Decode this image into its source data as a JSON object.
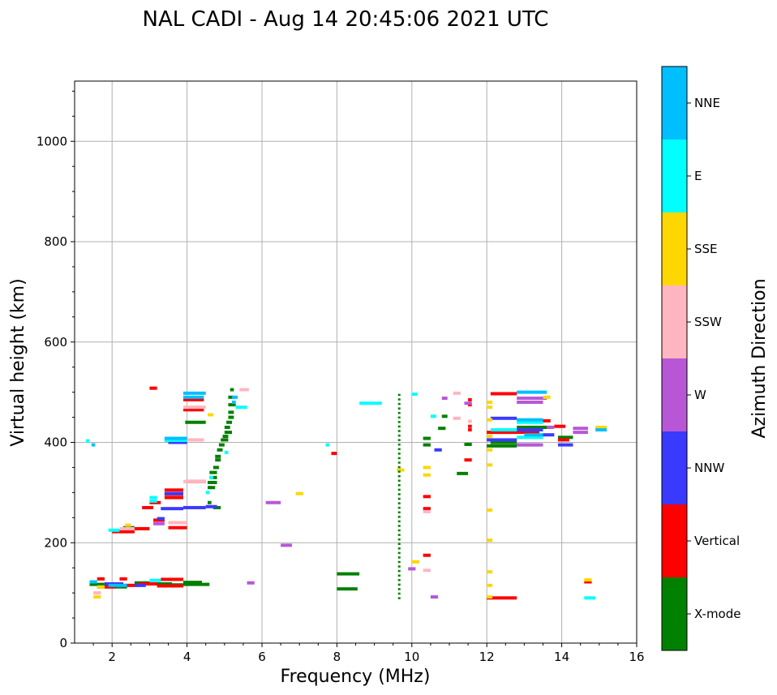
{
  "chart_data": {
    "type": "scatter",
    "title": "NAL CADI - Aug 14 20:45:06 2021 UTC",
    "xlabel": "Frequency (MHz)",
    "ylabel": "Virtual height (km)",
    "xlim": [
      1,
      16
    ],
    "ylim": [
      0,
      1120
    ],
    "xticks": [
      2,
      4,
      6,
      8,
      10,
      12,
      14,
      16
    ],
    "yticks": [
      0,
      200,
      400,
      600,
      800,
      1000
    ],
    "grid": true,
    "colorbar": {
      "label": "Azimuth Direction",
      "categories": [
        "X-mode",
        "Vertical",
        "NNW",
        "W",
        "SSW",
        "SSE",
        "E",
        "NNE"
      ],
      "colors": {
        "X-mode": "#008000",
        "Vertical": "#ff0000",
        "NNW": "#3a3aff",
        "W": "#b857d6",
        "SSW": "#ffb6c1",
        "SSE": "#ffd700",
        "E": "#00ffff",
        "NNE": "#00bfff"
      }
    },
    "series": [
      {
        "name": "X-mode",
        "segments": [
          [
            1.4,
            1.8,
            117
          ],
          [
            1.6,
            2.4,
            112
          ],
          [
            2.6,
            3.0,
            120
          ],
          [
            3.0,
            3.6,
            118
          ],
          [
            3.4,
            3.9,
            116
          ],
          [
            3.9,
            4.55,
            117
          ],
          [
            3.9,
            4.4,
            121
          ],
          [
            4.5,
            4.6,
            117
          ],
          [
            2.3,
            2.6,
            230
          ],
          [
            4.55,
            4.8,
            320
          ],
          [
            4.6,
            4.8,
            330
          ],
          [
            4.6,
            4.8,
            340
          ],
          [
            4.6,
            4.75,
            310
          ],
          [
            4.7,
            4.85,
            350
          ],
          [
            4.75,
            4.9,
            365
          ],
          [
            4.75,
            4.9,
            372
          ],
          [
            4.8,
            4.95,
            385
          ],
          [
            4.85,
            5.0,
            395
          ],
          [
            4.9,
            5.1,
            405
          ],
          [
            4.95,
            5.1,
            412
          ],
          [
            5.0,
            5.2,
            420
          ],
          [
            5.0,
            5.15,
            430
          ],
          [
            5.05,
            5.2,
            440
          ],
          [
            5.1,
            5.25,
            450
          ],
          [
            5.1,
            5.25,
            460
          ],
          [
            5.1,
            5.3,
            475
          ],
          [
            5.1,
            5.25,
            490
          ],
          [
            5.15,
            5.25,
            505
          ],
          [
            4.7,
            4.9,
            270
          ],
          [
            4.55,
            4.65,
            280
          ],
          [
            3.95,
            4.5,
            440
          ],
          [
            4.55,
            4.65,
            310
          ],
          [
            8.0,
            8.6,
            138
          ],
          [
            8.0,
            8.55,
            108
          ],
          [
            10.3,
            10.5,
            395
          ],
          [
            10.3,
            10.5,
            408
          ],
          [
            10.7,
            10.9,
            428
          ],
          [
            10.8,
            10.95,
            452
          ],
          [
            11.2,
            11.5,
            338
          ],
          [
            11.4,
            11.6,
            396
          ],
          [
            12.0,
            12.8,
            393
          ],
          [
            12.1,
            12.8,
            400
          ],
          [
            12.8,
            13.6,
            430
          ],
          [
            13.5,
            13.7,
            430
          ],
          [
            13.9,
            14.3,
            410
          ]
        ]
      },
      {
        "name": "Vertical",
        "segments": [
          [
            1.6,
            1.8,
            128
          ],
          [
            1.8,
            2.1,
            112
          ],
          [
            2.1,
            2.7,
            115
          ],
          [
            2.7,
            3.2,
            118
          ],
          [
            3.2,
            3.9,
            114
          ],
          [
            3.3,
            3.9,
            127
          ],
          [
            2.2,
            2.4,
            128
          ],
          [
            2.0,
            2.6,
            222
          ],
          [
            2.6,
            3.0,
            228
          ],
          [
            2.8,
            3.1,
            270
          ],
          [
            3.0,
            3.3,
            280
          ],
          [
            3.4,
            3.9,
            290
          ],
          [
            3.4,
            3.9,
            297
          ],
          [
            3.4,
            3.9,
            305
          ],
          [
            3.5,
            4.0,
            230
          ],
          [
            3.5,
            4.0,
            400
          ],
          [
            3.9,
            4.45,
            485
          ],
          [
            3.9,
            4.45,
            465
          ],
          [
            3.0,
            3.2,
            508
          ],
          [
            4.0,
            4.5,
            322
          ],
          [
            3.1,
            3.4,
            245
          ],
          [
            7.85,
            8.0,
            378
          ],
          [
            10.3,
            10.5,
            175
          ],
          [
            10.3,
            10.5,
            292
          ],
          [
            10.3,
            10.5,
            268
          ],
          [
            11.4,
            11.6,
            365
          ],
          [
            11.5,
            11.6,
            425
          ],
          [
            11.5,
            11.6,
            432
          ],
          [
            11.5,
            11.6,
            485
          ],
          [
            11.5,
            11.6,
            475
          ],
          [
            12.1,
            12.8,
            497
          ],
          [
            12.0,
            13.4,
            420
          ],
          [
            12.0,
            12.8,
            90
          ],
          [
            13.5,
            13.7,
            443
          ],
          [
            13.8,
            14.1,
            432
          ],
          [
            13.9,
            14.2,
            405
          ],
          [
            14.6,
            14.8,
            122
          ]
        ]
      },
      {
        "name": "NNW",
        "segments": [
          [
            1.8,
            2.3,
            118
          ],
          [
            2.6,
            2.9,
            115
          ],
          [
            3.2,
            3.4,
            248
          ],
          [
            3.3,
            3.9,
            268
          ],
          [
            3.9,
            4.5,
            270
          ],
          [
            4.5,
            4.8,
            272
          ],
          [
            3.4,
            3.9,
            298
          ],
          [
            3.5,
            4.0,
            400
          ],
          [
            10.6,
            10.8,
            385
          ],
          [
            12.1,
            12.8,
            448
          ],
          [
            12.0,
            12.8,
            405
          ],
          [
            12.8,
            13.5,
            425
          ],
          [
            12.8,
            13.4,
            395
          ],
          [
            13.9,
            14.3,
            395
          ],
          [
            13.5,
            13.8,
            415
          ]
        ]
      },
      {
        "name": "W",
        "segments": [
          [
            5.6,
            5.8,
            120
          ],
          [
            6.1,
            6.5,
            280
          ],
          [
            6.5,
            6.8,
            195
          ],
          [
            9.9,
            10.1,
            148
          ],
          [
            10.5,
            10.7,
            92
          ],
          [
            10.8,
            10.95,
            488
          ],
          [
            11.4,
            11.6,
            478
          ],
          [
            12.8,
            13.5,
            480
          ],
          [
            12.8,
            13.6,
            488
          ],
          [
            12.8,
            13.5,
            395
          ],
          [
            13.6,
            13.8,
            430
          ],
          [
            14.3,
            14.7,
            420
          ],
          [
            14.3,
            14.7,
            428
          ],
          [
            3.1,
            3.4,
            238
          ]
        ]
      },
      {
        "name": "SSW",
        "segments": [
          [
            1.5,
            1.7,
            100
          ],
          [
            2.2,
            2.6,
            228
          ],
          [
            3.5,
            4.0,
            240
          ],
          [
            3.9,
            4.5,
            322
          ],
          [
            3.9,
            4.5,
            470
          ],
          [
            3.9,
            4.45,
            405
          ],
          [
            5.4,
            5.65,
            505
          ],
          [
            10.3,
            10.5,
            262
          ],
          [
            10.3,
            10.5,
            145
          ],
          [
            11.1,
            11.3,
            498
          ],
          [
            11.1,
            11.3,
            448
          ],
          [
            11.5,
            11.6,
            442
          ]
        ]
      },
      {
        "name": "SSE",
        "segments": [
          [
            1.5,
            1.7,
            92
          ],
          [
            1.6,
            1.8,
            112
          ],
          [
            2.35,
            2.5,
            235
          ],
          [
            4.55,
            4.7,
            455
          ],
          [
            6.9,
            7.1,
            298
          ],
          [
            10.3,
            10.5,
            350
          ],
          [
            10.3,
            10.5,
            335
          ],
          [
            10.0,
            10.2,
            162
          ],
          [
            9.6,
            9.8,
            345
          ],
          [
            12.0,
            12.15,
            480
          ],
          [
            12.0,
            12.15,
            470
          ],
          [
            12.0,
            12.15,
            445
          ],
          [
            12.0,
            12.15,
            412
          ],
          [
            12.0,
            12.15,
            385
          ],
          [
            12.0,
            12.15,
            355
          ],
          [
            12.0,
            12.15,
            265
          ],
          [
            12.0,
            12.15,
            205
          ],
          [
            12.0,
            12.15,
            142
          ],
          [
            12.0,
            12.15,
            115
          ],
          [
            12.0,
            12.15,
            92
          ],
          [
            14.6,
            14.8,
            126
          ],
          [
            14.9,
            15.2,
            430
          ],
          [
            13.5,
            13.7,
            490
          ]
        ]
      },
      {
        "name": "E",
        "segments": [
          [
            1.3,
            1.4,
            403
          ],
          [
            1.9,
            2.2,
            225
          ],
          [
            3.0,
            3.3,
            125
          ],
          [
            3.0,
            3.2,
            290
          ],
          [
            3.0,
            3.2,
            283
          ],
          [
            3.4,
            4.0,
            404
          ],
          [
            4.5,
            4.6,
            300
          ],
          [
            4.6,
            4.7,
            330
          ],
          [
            5.3,
            5.6,
            470
          ],
          [
            7.7,
            7.8,
            395
          ],
          [
            8.6,
            9.2,
            478
          ],
          [
            10.0,
            10.15,
            496
          ],
          [
            10.5,
            10.65,
            452
          ],
          [
            12.1,
            12.8,
            425
          ],
          [
            12.8,
            13.5,
            440
          ],
          [
            12.8,
            13.5,
            410
          ],
          [
            14.6,
            14.9,
            90
          ],
          [
            5.0,
            5.1,
            380
          ]
        ]
      },
      {
        "name": "NNE",
        "segments": [
          [
            1.4,
            1.6,
            122
          ],
          [
            1.45,
            1.55,
            395
          ],
          [
            1.9,
            2.4,
            115
          ],
          [
            3.4,
            4.0,
            408
          ],
          [
            3.9,
            4.5,
            498
          ],
          [
            3.9,
            4.45,
            490
          ],
          [
            5.2,
            5.35,
            490
          ],
          [
            5.2,
            5.3,
            480
          ],
          [
            12.8,
            13.6,
            500
          ],
          [
            12.8,
            13.5,
            445
          ],
          [
            13.0,
            13.5,
            415
          ],
          [
            14.9,
            15.2,
            425
          ]
        ]
      }
    ]
  }
}
